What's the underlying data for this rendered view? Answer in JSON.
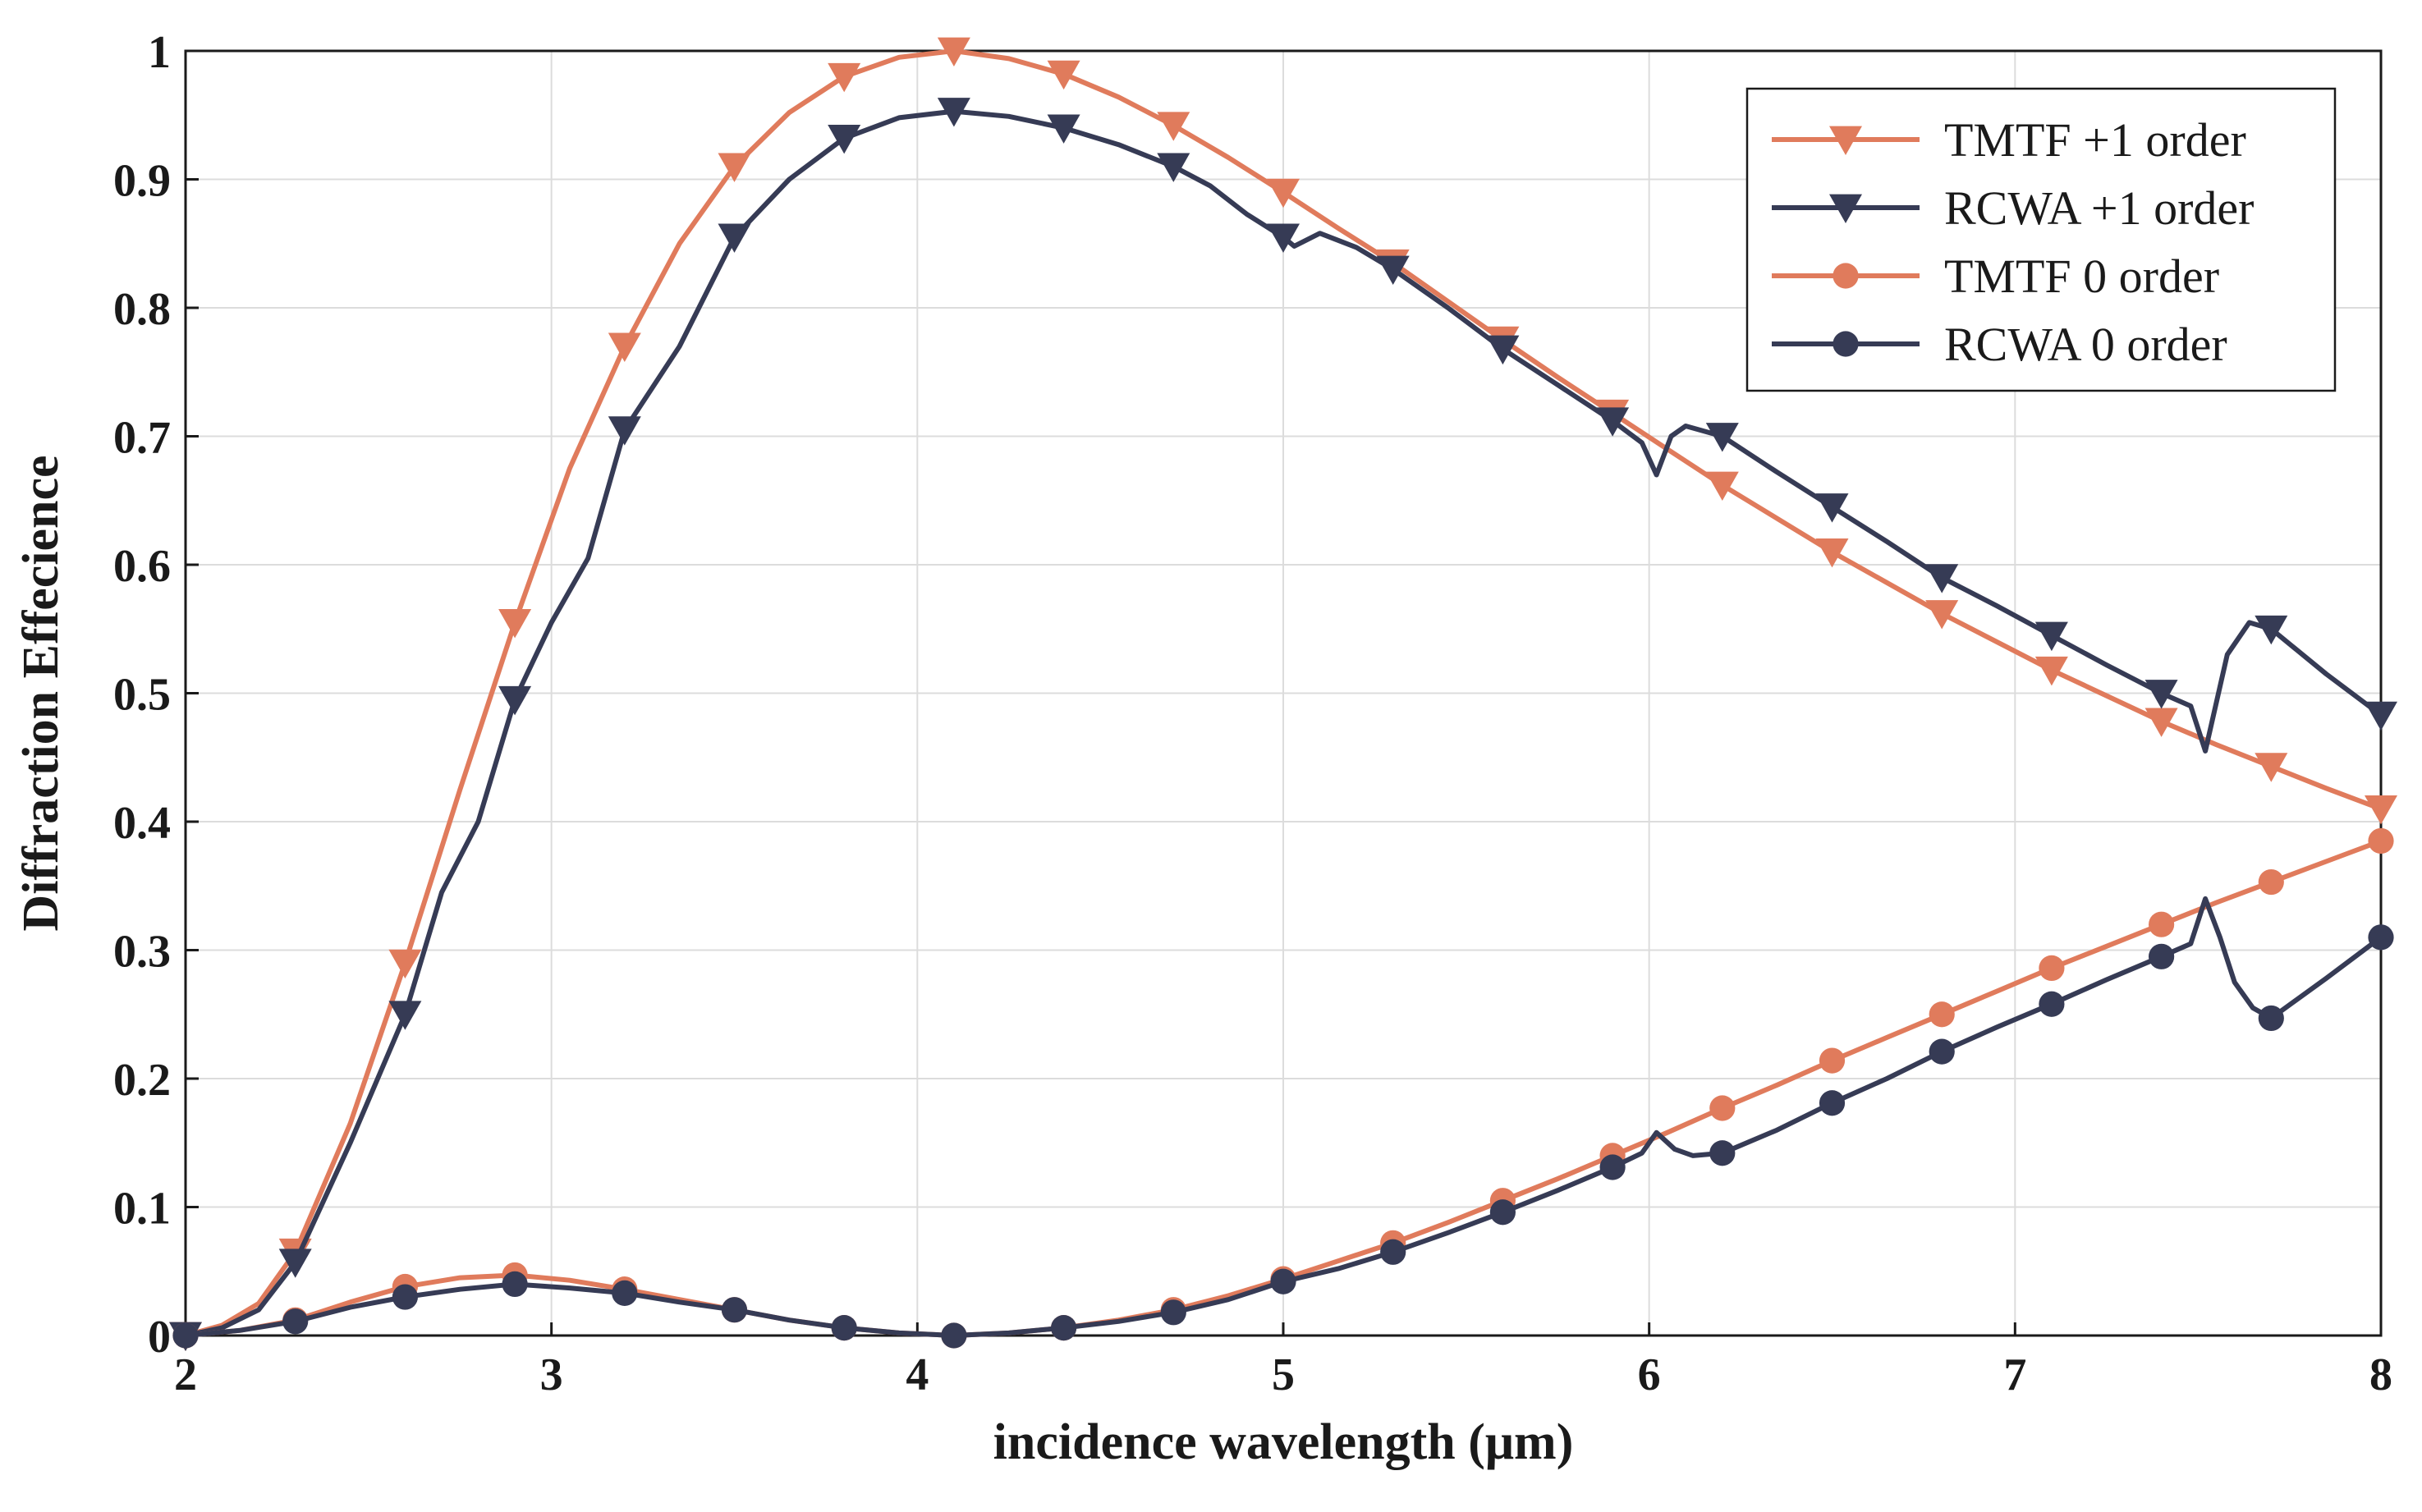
{
  "chart_data": {
    "type": "line",
    "title": "",
    "xlabel": "incidence wavelength (μm)",
    "ylabel": "Diffraction Effecience",
    "xlim": [
      2,
      8
    ],
    "ylim": [
      0,
      1
    ],
    "xticks": [
      2,
      3,
      4,
      5,
      6,
      7,
      8
    ],
    "yticks": [
      0,
      0.1,
      0.2,
      0.3,
      0.4,
      0.5,
      0.6,
      0.7,
      0.8,
      0.9,
      1
    ],
    "xtick_labels": [
      "2",
      "3",
      "4",
      "5",
      "6",
      "7",
      "8"
    ],
    "ytick_labels": [
      "0",
      "0.1",
      "0.2",
      "0.3",
      "0.4",
      "0.5",
      "0.6",
      "0.7",
      "0.8",
      "0.9",
      "1"
    ],
    "grid": true,
    "legend_position": "top-right",
    "colors": {
      "tmtf": "#e07b5c",
      "rcwa": "#363b55"
    },
    "series": [
      {
        "name": "TMTF +1 order",
        "color": "#e07b5c",
        "marker": "triangle-down",
        "x": [
          2.0,
          2.3,
          2.6,
          2.9,
          3.2,
          3.5,
          3.8,
          4.1,
          4.4,
          4.7,
          5.0,
          5.3,
          5.6,
          5.9,
          6.2,
          6.5,
          6.8,
          7.1,
          7.4,
          7.7,
          8.0
        ],
        "values": [
          0.0,
          0.065,
          0.29,
          0.555,
          0.77,
          0.91,
          0.98,
          1.0,
          0.982,
          0.942,
          0.89,
          0.835,
          0.775,
          0.718,
          0.662,
          0.61,
          0.562,
          0.518,
          0.478,
          0.443,
          0.41
        ],
        "line_x": [
          2.0,
          2.1,
          2.2,
          2.3,
          2.45,
          2.6,
          2.75,
          2.9,
          3.05,
          3.2,
          3.35,
          3.5,
          3.65,
          3.8,
          3.95,
          4.1,
          4.25,
          4.4,
          4.55,
          4.7,
          4.85,
          5.0,
          5.15,
          5.3,
          5.45,
          5.6,
          5.75,
          5.9,
          6.05,
          6.2,
          6.35,
          6.5,
          6.65,
          6.8,
          6.95,
          7.1,
          7.25,
          7.4,
          7.55,
          7.7,
          7.85,
          8.0
        ],
        "line_y": [
          0.0,
          0.008,
          0.025,
          0.065,
          0.165,
          0.29,
          0.425,
          0.555,
          0.675,
          0.77,
          0.85,
          0.91,
          0.952,
          0.98,
          0.995,
          1.0,
          0.994,
          0.982,
          0.964,
          0.942,
          0.917,
          0.89,
          0.862,
          0.835,
          0.805,
          0.775,
          0.746,
          0.718,
          0.69,
          0.662,
          0.636,
          0.61,
          0.586,
          0.562,
          0.54,
          0.518,
          0.498,
          0.478,
          0.46,
          0.443,
          0.426,
          0.41
        ]
      },
      {
        "name": "RCWA +1 order",
        "color": "#363b55",
        "marker": "triangle-down",
        "x": [
          2.0,
          2.3,
          2.6,
          2.9,
          3.2,
          3.5,
          3.8,
          4.1,
          4.4,
          4.7,
          5.0,
          5.3,
          5.6,
          5.9,
          6.2,
          6.5,
          6.8,
          7.1,
          7.4,
          7.7,
          8.0
        ],
        "values": [
          0.0,
          0.057,
          0.25,
          0.495,
          0.705,
          0.855,
          0.932,
          0.953,
          0.94,
          0.91,
          0.855,
          0.83,
          0.768,
          0.712,
          0.7,
          0.645,
          0.59,
          0.545,
          0.5,
          0.55,
          0.483
        ],
        "line_x": [
          2.0,
          2.1,
          2.2,
          2.3,
          2.45,
          2.6,
          2.7,
          2.8,
          2.9,
          3.0,
          3.1,
          3.2,
          3.35,
          3.5,
          3.65,
          3.8,
          3.95,
          4.1,
          4.25,
          4.4,
          4.55,
          4.7,
          4.8,
          4.9,
          5.0,
          5.03,
          5.1,
          5.2,
          5.3,
          5.45,
          5.6,
          5.75,
          5.9,
          5.98,
          6.02,
          6.06,
          6.1,
          6.2,
          6.35,
          6.5,
          6.65,
          6.8,
          6.95,
          7.1,
          7.25,
          7.4,
          7.48,
          7.52,
          7.58,
          7.64,
          7.7,
          7.85,
          8.0
        ],
        "line_y": [
          0.0,
          0.006,
          0.02,
          0.057,
          0.15,
          0.25,
          0.345,
          0.4,
          0.495,
          0.555,
          0.605,
          0.705,
          0.77,
          0.855,
          0.9,
          0.932,
          0.948,
          0.953,
          0.949,
          0.94,
          0.927,
          0.91,
          0.895,
          0.873,
          0.855,
          0.848,
          0.858,
          0.847,
          0.83,
          0.8,
          0.768,
          0.74,
          0.712,
          0.695,
          0.67,
          0.7,
          0.708,
          0.7,
          0.672,
          0.645,
          0.618,
          0.59,
          0.568,
          0.545,
          0.522,
          0.5,
          0.49,
          0.455,
          0.53,
          0.555,
          0.55,
          0.515,
          0.483
        ]
      },
      {
        "name": "TMTF 0 order",
        "color": "#e07b5c",
        "marker": "circle",
        "x": [
          2.0,
          2.3,
          2.6,
          2.9,
          3.2,
          3.5,
          3.8,
          4.1,
          4.4,
          4.7,
          5.0,
          5.3,
          5.6,
          5.9,
          6.2,
          6.5,
          6.8,
          7.1,
          7.4,
          7.7,
          8.0
        ],
        "values": [
          0.0,
          0.012,
          0.038,
          0.047,
          0.036,
          0.02,
          0.006,
          0.0,
          0.006,
          0.02,
          0.044,
          0.072,
          0.105,
          0.14,
          0.177,
          0.214,
          0.25,
          0.286,
          0.32,
          0.353,
          0.385
        ],
        "line_x": [
          2.0,
          2.15,
          2.3,
          2.45,
          2.6,
          2.75,
          2.9,
          3.05,
          3.2,
          3.35,
          3.5,
          3.65,
          3.8,
          3.95,
          4.1,
          4.25,
          4.4,
          4.55,
          4.7,
          4.85,
          5.0,
          5.15,
          5.3,
          5.45,
          5.6,
          5.75,
          5.9,
          6.05,
          6.2,
          6.35,
          6.5,
          6.65,
          6.8,
          6.95,
          7.1,
          7.25,
          7.4,
          7.55,
          7.7,
          7.85,
          8.0
        ],
        "line_y": [
          0.0,
          0.004,
          0.012,
          0.026,
          0.038,
          0.045,
          0.047,
          0.043,
          0.036,
          0.028,
          0.02,
          0.012,
          0.006,
          0.002,
          0.0,
          0.002,
          0.006,
          0.012,
          0.02,
          0.031,
          0.044,
          0.058,
          0.072,
          0.088,
          0.105,
          0.122,
          0.14,
          0.158,
          0.177,
          0.195,
          0.214,
          0.232,
          0.25,
          0.268,
          0.286,
          0.303,
          0.32,
          0.337,
          0.353,
          0.369,
          0.385
        ]
      },
      {
        "name": "RCWA 0 order",
        "color": "#363b55",
        "marker": "circle",
        "x": [
          2.0,
          2.3,
          2.6,
          2.9,
          3.2,
          3.5,
          3.8,
          4.1,
          4.4,
          4.7,
          5.0,
          5.3,
          5.6,
          5.9,
          6.2,
          6.5,
          6.8,
          7.1,
          7.4,
          7.7,
          8.0
        ],
        "values": [
          0.0,
          0.011,
          0.03,
          0.04,
          0.033,
          0.02,
          0.006,
          0.0,
          0.006,
          0.018,
          0.042,
          0.065,
          0.096,
          0.131,
          0.142,
          0.181,
          0.221,
          0.258,
          0.295,
          0.247,
          0.31
        ],
        "line_x": [
          2.0,
          2.15,
          2.3,
          2.45,
          2.6,
          2.75,
          2.9,
          3.05,
          3.2,
          3.35,
          3.5,
          3.65,
          3.8,
          3.95,
          4.1,
          4.25,
          4.4,
          4.55,
          4.7,
          4.85,
          5.0,
          5.15,
          5.3,
          5.45,
          5.6,
          5.75,
          5.9,
          5.98,
          6.02,
          6.07,
          6.12,
          6.2,
          6.35,
          6.5,
          6.65,
          6.8,
          6.95,
          7.1,
          7.25,
          7.4,
          7.48,
          7.52,
          7.56,
          7.6,
          7.65,
          7.7,
          7.85,
          8.0
        ],
        "line_y": [
          0.0,
          0.004,
          0.011,
          0.022,
          0.03,
          0.036,
          0.04,
          0.037,
          0.033,
          0.026,
          0.02,
          0.012,
          0.006,
          0.002,
          0.0,
          0.002,
          0.006,
          0.011,
          0.018,
          0.028,
          0.042,
          0.052,
          0.065,
          0.08,
          0.096,
          0.113,
          0.131,
          0.142,
          0.158,
          0.145,
          0.14,
          0.142,
          0.16,
          0.181,
          0.2,
          0.221,
          0.24,
          0.258,
          0.277,
          0.295,
          0.305,
          0.34,
          0.31,
          0.275,
          0.255,
          0.247,
          0.278,
          0.31
        ]
      }
    ]
  }
}
